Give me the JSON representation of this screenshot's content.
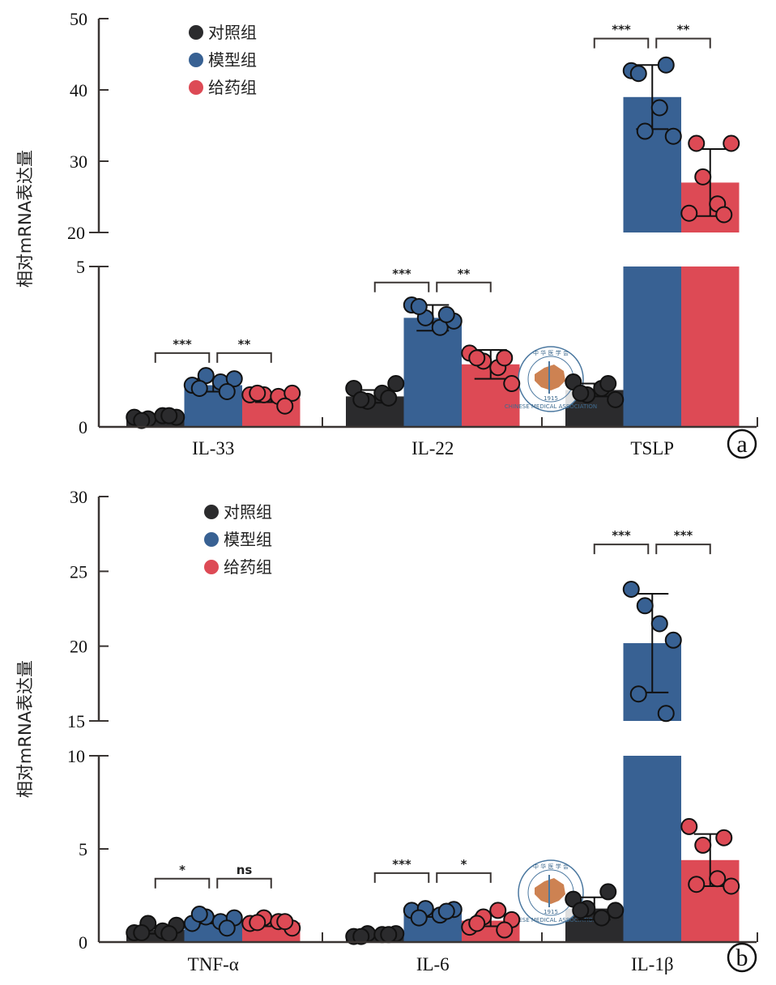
{
  "colors": {
    "control": "#2b2b2d",
    "model": "#386193",
    "treatment": "#dd4a55",
    "axis": "#3a3533",
    "watermark_map": "#c8743f",
    "watermark_ring": "#4b78a0"
  },
  "legend": {
    "items": [
      {
        "key": "control",
        "label": "对照组"
      },
      {
        "key": "model",
        "label": "模型组"
      },
      {
        "key": "treatment",
        "label": "给药组"
      }
    ]
  },
  "watermark": {
    "top_text": "中 华 医 学 会",
    "bottom_text": "CHINESE MEDICAL ASSOCIATION",
    "year": "1915"
  },
  "chart_data": [
    {
      "type": "bar",
      "panel": "a",
      "panel_label": "a",
      "title": "",
      "xlabel": "",
      "ylabel": "相对mRNA表达量",
      "series_names": [
        "对照组",
        "模型组",
        "给药组"
      ],
      "categories": [
        "IL-33",
        "IL-22",
        "TSLP"
      ],
      "y_axis": {
        "broken": true,
        "lower_range": [
          0,
          5
        ],
        "upper_range": [
          20,
          50
        ],
        "lower_ticks": [
          0,
          5
        ],
        "upper_ticks": [
          20,
          30,
          40,
          50
        ],
        "tick_labels": [
          "0",
          "5",
          "20",
          "30",
          "40",
          "50"
        ]
      },
      "series": [
        {
          "name": "对照组",
          "key": "control",
          "means": [
            0.3,
            0.95,
            1.15
          ],
          "err": [
            0.1,
            0.2,
            0.2
          ],
          "points": [
            [
              0.3,
              0.25,
              0.35,
              0.3,
              0.2,
              0.35
            ],
            [
              1.2,
              0.8,
              1.05,
              1.35,
              0.85,
              0.9
            ],
            [
              1.4,
              1.0,
              1.2,
              0.85,
              1.05,
              1.35
            ]
          ]
        },
        {
          "name": "模型组",
          "key": "model",
          "means": [
            1.3,
            3.4,
            39.0
          ],
          "err": [
            0.2,
            0.4,
            4.5
          ],
          "points": [
            [
              1.3,
              1.6,
              1.4,
              1.5,
              1.2,
              1.1
            ],
            [
              3.8,
              3.4,
              3.1,
              3.3,
              3.75,
              3.5
            ],
            [
              42.7,
              34.2,
              37.5,
              33.5,
              42.3,
              43.5
            ]
          ]
        },
        {
          "name": "给药组",
          "key": "treatment",
          "means": [
            0.92,
            1.95,
            27.0
          ],
          "err": [
            0.15,
            0.45,
            4.7
          ],
          "points": [
            [
              1.0,
              1.0,
              0.95,
              1.05,
              1.05,
              0.65
            ],
            [
              2.3,
              2.05,
              1.85,
              1.35,
              2.15,
              2.15
            ],
            [
              22.7,
              27.8,
              24.0,
              32.5,
              32.5,
              22.5
            ]
          ]
        }
      ],
      "significance": [
        {
          "category": "IL-33",
          "pair": "control-model",
          "label": "***",
          "y": 2.3
        },
        {
          "category": "IL-33",
          "pair": "model-treatment",
          "label": "**",
          "y": 2.3
        },
        {
          "category": "IL-22",
          "pair": "control-model",
          "label": "***",
          "y": 4.5
        },
        {
          "category": "IL-22",
          "pair": "model-treatment",
          "label": "**",
          "y": 4.5
        },
        {
          "category": "TSLP",
          "pair": "control-model",
          "label": "***",
          "y": 47.2
        },
        {
          "category": "TSLP",
          "pair": "model-treatment",
          "label": "**",
          "y": 47.2
        }
      ]
    },
    {
      "type": "bar",
      "panel": "b",
      "panel_label": "b",
      "title": "",
      "xlabel": "",
      "ylabel": "相对mRNA表达量",
      "series_names": [
        "对照组",
        "模型组",
        "给药组"
      ],
      "categories": [
        "TNF-α",
        "IL-6",
        "IL-1β"
      ],
      "y_axis": {
        "broken": true,
        "lower_range": [
          0,
          10
        ],
        "upper_range": [
          15,
          30
        ],
        "lower_ticks": [
          0,
          5,
          10
        ],
        "upper_ticks": [
          15,
          20,
          25,
          30
        ],
        "tick_labels": [
          "0",
          "5",
          "10",
          "15",
          "20",
          "25",
          "30"
        ]
      },
      "series": [
        {
          "name": "对照组",
          "key": "control",
          "means": [
            0.65,
            0.4,
            1.8
          ],
          "err": [
            0.2,
            0.1,
            0.6
          ],
          "points": [
            [
              0.5,
              1.0,
              0.6,
              0.9,
              0.5,
              0.45
            ],
            [
              0.3,
              0.45,
              0.4,
              0.45,
              0.3,
              0.4
            ],
            [
              2.3,
              1.8,
              1.3,
              1.7,
              1.7,
              2.7
            ]
          ]
        },
        {
          "name": "模型组",
          "key": "model",
          "means": [
            1.2,
            1.55,
            20.2
          ],
          "err": [
            0.2,
            0.2,
            3.3
          ],
          "points": [
            [
              1.0,
              1.35,
              1.1,
              1.3,
              1.5,
              0.75
            ],
            [
              1.7,
              1.8,
              1.45,
              1.75,
              1.3,
              1.65
            ],
            [
              23.8,
              22.7,
              21.5,
              20.4,
              16.8,
              15.5
            ]
          ]
        },
        {
          "name": "给药组",
          "key": "treatment",
          "means": [
            1.05,
            1.15,
            4.4
          ],
          "err": [
            0.2,
            0.3,
            1.4
          ],
          "points": [
            [
              1.0,
              1.3,
              1.1,
              0.75,
              1.05,
              1.1
            ],
            [
              0.8,
              1.35,
              1.7,
              1.2,
              1.0,
              0.65
            ],
            [
              6.2,
              5.2,
              3.4,
              3.0,
              3.1,
              5.6
            ]
          ]
        }
      ],
      "significance": [
        {
          "category": "TNF-α",
          "pair": "control-model",
          "label": "*",
          "y": 3.4
        },
        {
          "category": "TNF-α",
          "pair": "model-treatment",
          "label": "ns",
          "y": 3.4
        },
        {
          "category": "IL-6",
          "pair": "control-model",
          "label": "***",
          "y": 3.7
        },
        {
          "category": "IL-6",
          "pair": "model-treatment",
          "label": "*",
          "y": 3.7
        },
        {
          "category": "IL-1β",
          "pair": "control-model",
          "label": "***",
          "y": 26.8
        },
        {
          "category": "IL-1β",
          "pair": "model-treatment",
          "label": "***",
          "y": 26.8
        }
      ]
    }
  ]
}
